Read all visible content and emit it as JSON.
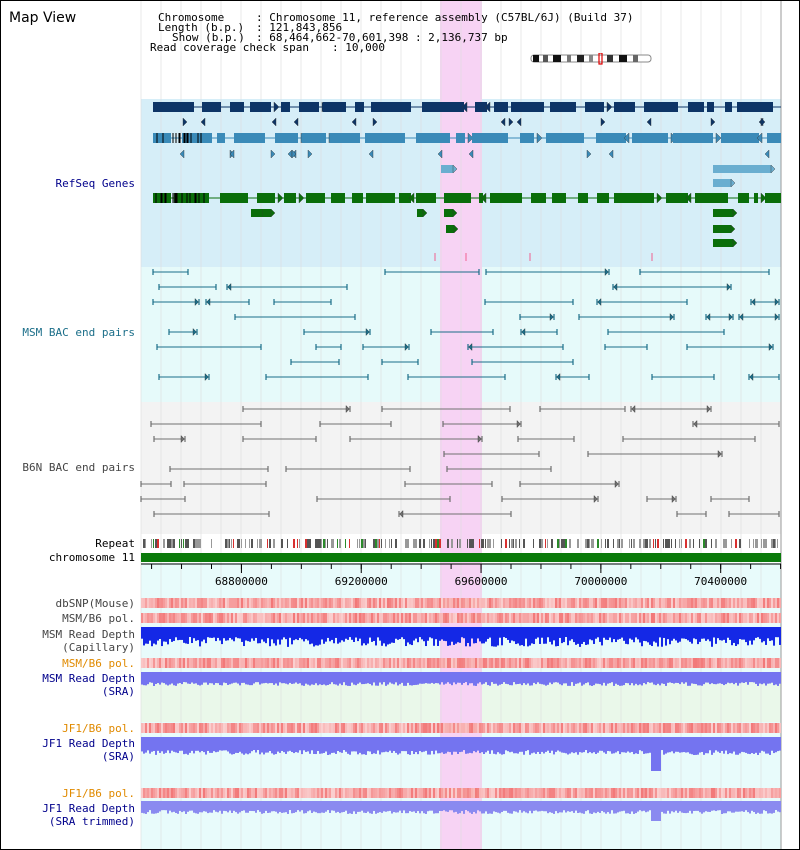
{
  "title": "Map View",
  "info": {
    "chromosome_key": "Chromosome",
    "chromosome_val": ": Chromosome 11, reference assembly (C57BL/6J) (Build 37)",
    "length_key": "Length (b.p.)",
    "length_val": ": 121,843,856",
    "show_key": "Show (b.p.)",
    "show_val": ": 68,464,662-70,601,398 : 2,136,737 bp",
    "span_key": "Read coverage check span",
    "span_val": ": 10,000"
  },
  "tracks": {
    "refseq": "RefSeq Genes",
    "msm_bac": "MSM BAC end pairs",
    "b6n_bac": "B6N BAC end pairs",
    "repeat": "Repeat",
    "chromosome": "chromosome 11",
    "dbsnp": "dbSNP(Mouse)",
    "msm_b6_pol": "MSM/B6 pol.",
    "msm_read_depth_cap_1": "MSM Read Depth",
    "msm_read_depth_cap_2": "(Capillary)",
    "msm_b6_pol_2": "MSM/B6 pol.",
    "msm_read_depth_sra_1": "MSM Read Depth",
    "msm_read_depth_sra_2": "(SRA)",
    "jf1_b6_pol": "JF1/B6 pol.",
    "jf1_read_depth_sra_1": "JF1 Read Depth",
    "jf1_read_depth_sra_2": "(SRA)",
    "jf1_b6_pol_2": "JF1/B6 pol.",
    "jf1_read_depth_trim_1": "JF1 Read Depth",
    "jf1_read_depth_trim_2": "(SRA trimmed)"
  },
  "axis": {
    "ticks": [
      "68800000",
      "69200000",
      "69600000",
      "70000000",
      "70400000"
    ]
  },
  "colors": {
    "highlight": "#f7d3f4",
    "refseq_bg": "#d6eef8",
    "msm_bg": "#e6fafa",
    "b6n_bg": "#f3f3f3",
    "gene_dark": "#0d3466",
    "gene_mid": "#3a8ab8",
    "gene_light": "#6aaed0",
    "gene_green": "#0a6e0a",
    "bac_msm": "#1b6e89",
    "bac_b6n": "#707070",
    "chrom_bar": "#0a7a0a",
    "snp_bar": "#f27878",
    "depth_cap": "#1428e6",
    "depth_sra": "#7474f0",
    "label_dark": "#000000",
    "label_blue": "#00008b",
    "label_teal": "#1b6e89",
    "label_gray": "#444444",
    "label_orange": "#e08a00"
  }
}
